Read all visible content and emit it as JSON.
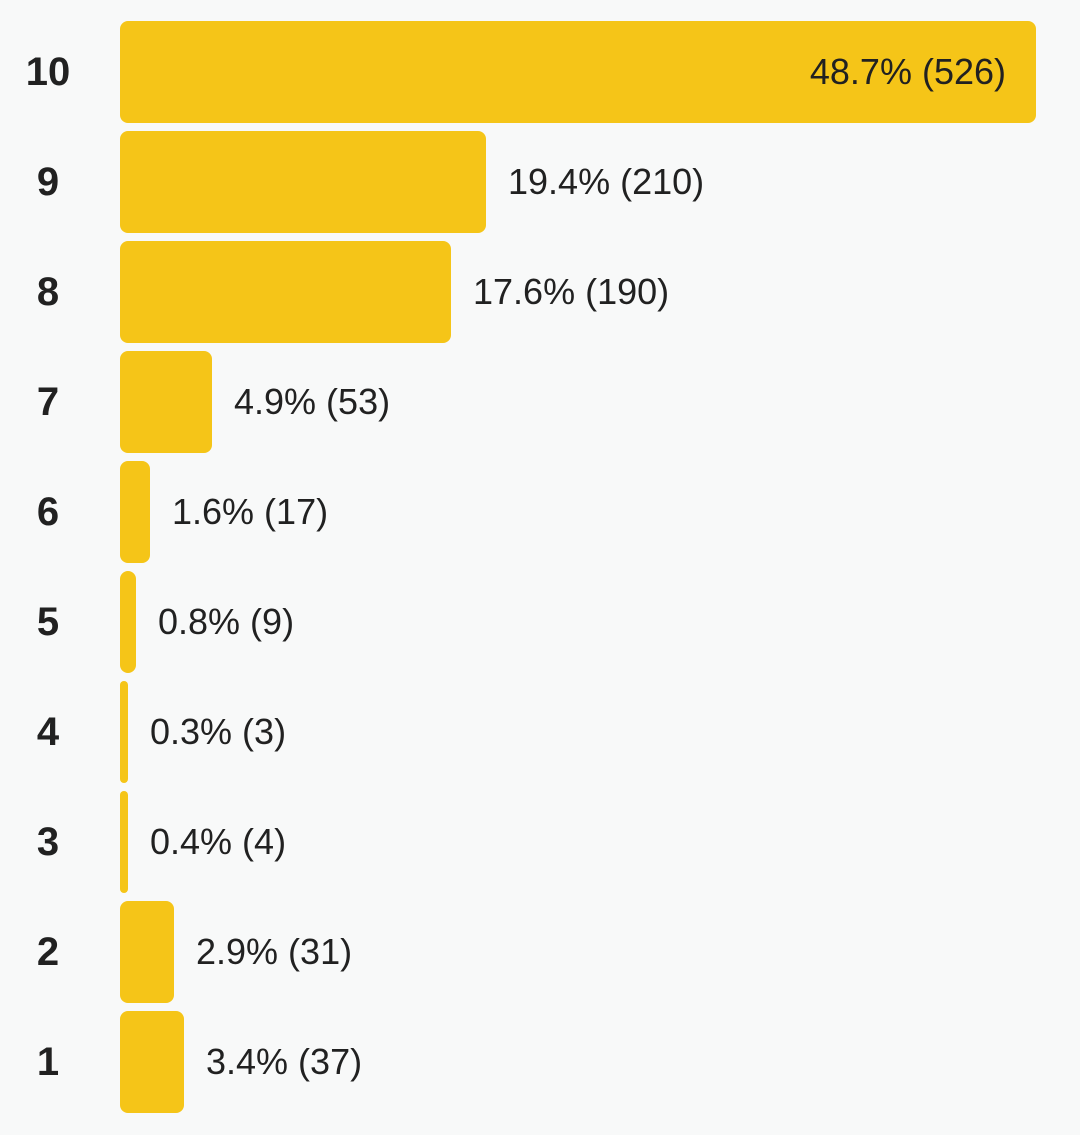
{
  "chart_data": {
    "type": "bar",
    "orientation": "horizontal",
    "categories": [
      "10",
      "9",
      "8",
      "7",
      "6",
      "5",
      "4",
      "3",
      "2",
      "1"
    ],
    "values": [
      526,
      210,
      190,
      53,
      17,
      9,
      3,
      4,
      31,
      37
    ],
    "percent_labels": [
      "48.7%",
      "19.4%",
      "17.6%",
      "4.9%",
      "1.6%",
      "0.8%",
      "0.3%",
      "0.4%",
      "2.9%",
      "3.4%"
    ],
    "data_labels": [
      "48.7% (526)",
      "19.4% (210)",
      "17.6% (190)",
      "4.9% (53)",
      "1.6% (17)",
      "0.8% (9)",
      "0.3% (3)",
      "0.4% (4)",
      "2.9% (31)",
      "3.4% (37)"
    ],
    "xlim": [
      0,
      526
    ],
    "grid": false,
    "legend": "none",
    "bar_color": "#f5c518"
  }
}
